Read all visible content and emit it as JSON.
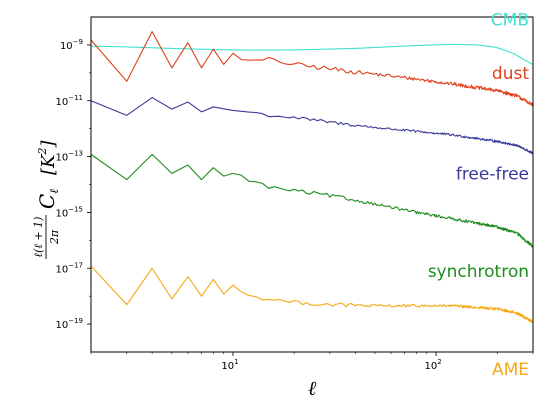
{
  "chart_data": {
    "type": "line",
    "title": "",
    "xlabel": "ℓ",
    "ylabel": "ℓ(ℓ+1)/2π C_ℓ [K²]",
    "xscale": "log",
    "yscale": "log",
    "xlim": [
      2,
      300
    ],
    "ylim": [
      1e-20,
      1e-08
    ],
    "grid": false,
    "x_ticks": [
      {
        "value": 10,
        "base": "10",
        "exp": "1"
      },
      {
        "value": 100,
        "base": "10",
        "exp": "2"
      }
    ],
    "y_ticks": [
      {
        "value": 1e-09,
        "base": "10",
        "exp": "−9"
      },
      {
        "value": 1e-11,
        "base": "10",
        "exp": "−11"
      },
      {
        "value": 1e-13,
        "base": "10",
        "exp": "−13"
      },
      {
        "value": 1e-15,
        "base": "10",
        "exp": "−15"
      },
      {
        "value": 1e-17,
        "base": "10",
        "exp": "−17"
      },
      {
        "value": 1e-19,
        "base": "10",
        "exp": "−19"
      }
    ],
    "series": [
      {
        "name": "CMB",
        "color": "#40e0d0",
        "noise": 0,
        "points": [
          [
            2,
            9e-10
          ],
          [
            3,
            8.5e-10
          ],
          [
            5,
            7.5e-10
          ],
          [
            8,
            6.8e-10
          ],
          [
            12,
            6.5e-10
          ],
          [
            20,
            6.6e-10
          ],
          [
            40,
            7.5e-10
          ],
          [
            80,
            9.5e-10
          ],
          [
            120,
            1.05e-09
          ],
          [
            160,
            1e-09
          ],
          [
            200,
            8e-10
          ],
          [
            240,
            5e-10
          ],
          [
            270,
            3e-10
          ],
          [
            300,
            2e-10
          ]
        ]
      },
      {
        "name": "dust",
        "color": "#e0401c",
        "noise": 0.06,
        "points": [
          [
            2,
            1.5e-09
          ],
          [
            3,
            5e-11
          ],
          [
            4,
            3e-09
          ],
          [
            5,
            1.5e-10
          ],
          [
            6,
            1.2e-09
          ],
          [
            7,
            1.5e-10
          ],
          [
            8,
            7e-10
          ],
          [
            9,
            2e-10
          ],
          [
            10,
            5e-10
          ],
          [
            12,
            2.5e-10
          ],
          [
            15,
            3e-10
          ],
          [
            20,
            2e-10
          ],
          [
            30,
            1.4e-10
          ],
          [
            50,
            9e-11
          ],
          [
            80,
            6e-11
          ],
          [
            120,
            4e-11
          ],
          [
            200,
            2.3e-11
          ],
          [
            250,
            1.5e-11
          ],
          [
            300,
            7e-12
          ]
        ]
      },
      {
        "name": "free-free",
        "color": "#3a3a9a",
        "noise": 0.04,
        "points": [
          [
            2,
            1e-11
          ],
          [
            2.5,
            6e-12
          ],
          [
            3,
            3e-12
          ],
          [
            3.5,
            5e-12
          ],
          [
            4,
            1.3e-11
          ],
          [
            4.5,
            4e-12
          ],
          [
            5,
            5e-12
          ],
          [
            6,
            9e-12
          ],
          [
            7,
            4e-12
          ],
          [
            8,
            6e-12
          ],
          [
            10,
            4.5e-12
          ],
          [
            12,
            4e-12
          ],
          [
            15,
            3e-12
          ],
          [
            20,
            2.5e-12
          ],
          [
            30,
            1.7e-12
          ],
          [
            50,
            1.1e-12
          ],
          [
            80,
            8e-13
          ],
          [
            120,
            6e-13
          ],
          [
            200,
            3.5e-13
          ],
          [
            250,
            2.5e-13
          ],
          [
            300,
            1.3e-13
          ]
        ]
      },
      {
        "name": "synchrotron",
        "color": "#1e8c1e",
        "noise": 0.05,
        "points": [
          [
            2,
            1.2e-13
          ],
          [
            3,
            1.5e-14
          ],
          [
            4,
            1.2e-13
          ],
          [
            5,
            2.5e-14
          ],
          [
            6,
            5e-14
          ],
          [
            7,
            1.5e-14
          ],
          [
            8,
            4e-14
          ],
          [
            9,
            2e-14
          ],
          [
            10,
            2.5e-14
          ],
          [
            12,
            1.5e-14
          ],
          [
            15,
            8e-15
          ],
          [
            20,
            6e-15
          ],
          [
            30,
            4e-15
          ],
          [
            50,
            2e-15
          ],
          [
            80,
            1e-15
          ],
          [
            120,
            6e-16
          ],
          [
            200,
            3e-16
          ],
          [
            250,
            1.8e-16
          ],
          [
            300,
            6e-17
          ]
        ]
      },
      {
        "name": "AME",
        "color": "#f5a814",
        "noise": 0.05,
        "points": [
          [
            2,
            1.2e-17
          ],
          [
            3,
            5e-19
          ],
          [
            4,
            1e-17
          ],
          [
            5,
            8e-19
          ],
          [
            6,
            5e-18
          ],
          [
            7,
            1e-18
          ],
          [
            8,
            4e-18
          ],
          [
            9,
            1.2e-18
          ],
          [
            10,
            2.5e-18
          ],
          [
            12,
            1e-18
          ],
          [
            15,
            8e-19
          ],
          [
            20,
            6e-19
          ],
          [
            30,
            5e-19
          ],
          [
            50,
            4.5e-19
          ],
          [
            80,
            4.5e-19
          ],
          [
            120,
            4.5e-19
          ],
          [
            200,
            3.5e-19
          ],
          [
            250,
            2.5e-19
          ],
          [
            300,
            1.2e-19
          ]
        ]
      }
    ]
  }
}
